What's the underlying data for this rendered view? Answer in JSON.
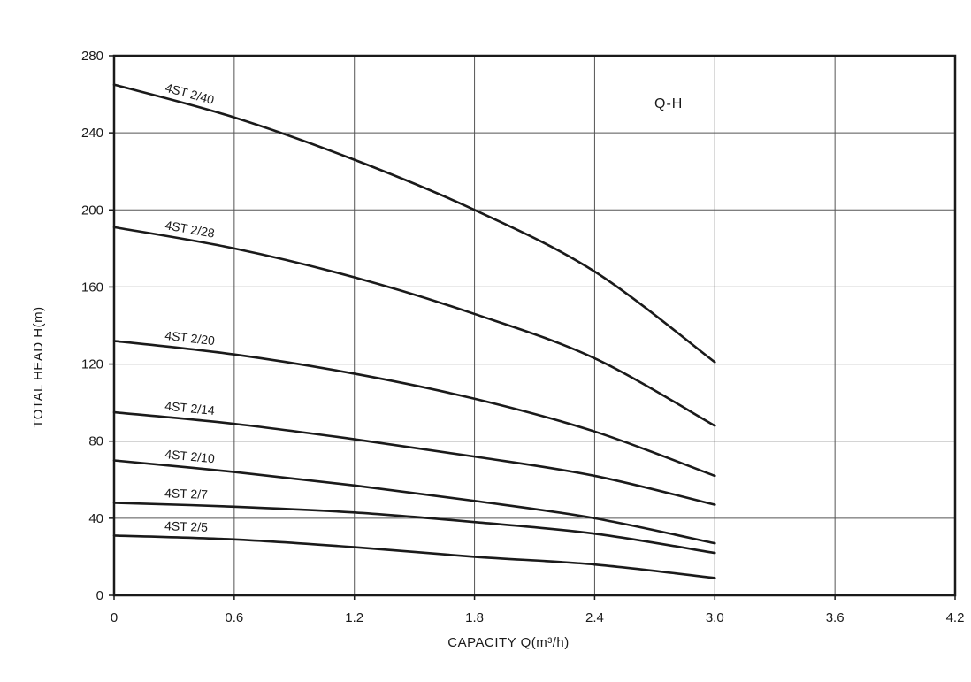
{
  "chart_data": {
    "type": "line",
    "title": "",
    "annotation": "Q-H",
    "xlabel": "CAPACITY Q(m³/h)",
    "ylabel": "TOTAL HEAD H(m)",
    "xlim": [
      0,
      4.2
    ],
    "ylim": [
      0,
      280
    ],
    "x_ticks": [
      "0",
      "0.6",
      "1.2",
      "1.8",
      "2.4",
      "3.0",
      "3.6",
      "4.2"
    ],
    "y_ticks": [
      "0",
      "40",
      "80",
      "120",
      "160",
      "200",
      "240",
      "280"
    ],
    "grid": true,
    "series": [
      {
        "name": "4ST 2/40",
        "x": [
          0,
          0.6,
          1.2,
          1.8,
          2.4,
          3.0
        ],
        "y": [
          265,
          248,
          226,
          200,
          168,
          121
        ]
      },
      {
        "name": "4ST 2/28",
        "x": [
          0,
          0.6,
          1.2,
          1.8,
          2.4,
          3.0
        ],
        "y": [
          191,
          180,
          165,
          146,
          123,
          88
        ]
      },
      {
        "name": "4ST 2/20",
        "x": [
          0,
          0.6,
          1.2,
          1.8,
          2.4,
          3.0
        ],
        "y": [
          132,
          125,
          115,
          102,
          85,
          62
        ]
      },
      {
        "name": "4ST 2/14",
        "x": [
          0,
          0.6,
          1.2,
          1.8,
          2.4,
          3.0
        ],
        "y": [
          95,
          89,
          81,
          72,
          62,
          47
        ]
      },
      {
        "name": "4ST 2/10",
        "x": [
          0,
          0.6,
          1.2,
          1.8,
          2.4,
          3.0
        ],
        "y": [
          70,
          64,
          57,
          49,
          40,
          27
        ]
      },
      {
        "name": "4ST 2/7",
        "x": [
          0,
          0.6,
          1.2,
          1.8,
          2.4,
          3.0
        ],
        "y": [
          48,
          46,
          43,
          38,
          32,
          22
        ]
      },
      {
        "name": "4ST 2/5",
        "x": [
          0,
          0.6,
          1.2,
          1.8,
          2.4,
          3.0
        ],
        "y": [
          31,
          29,
          25,
          20,
          16,
          9
        ]
      }
    ]
  }
}
